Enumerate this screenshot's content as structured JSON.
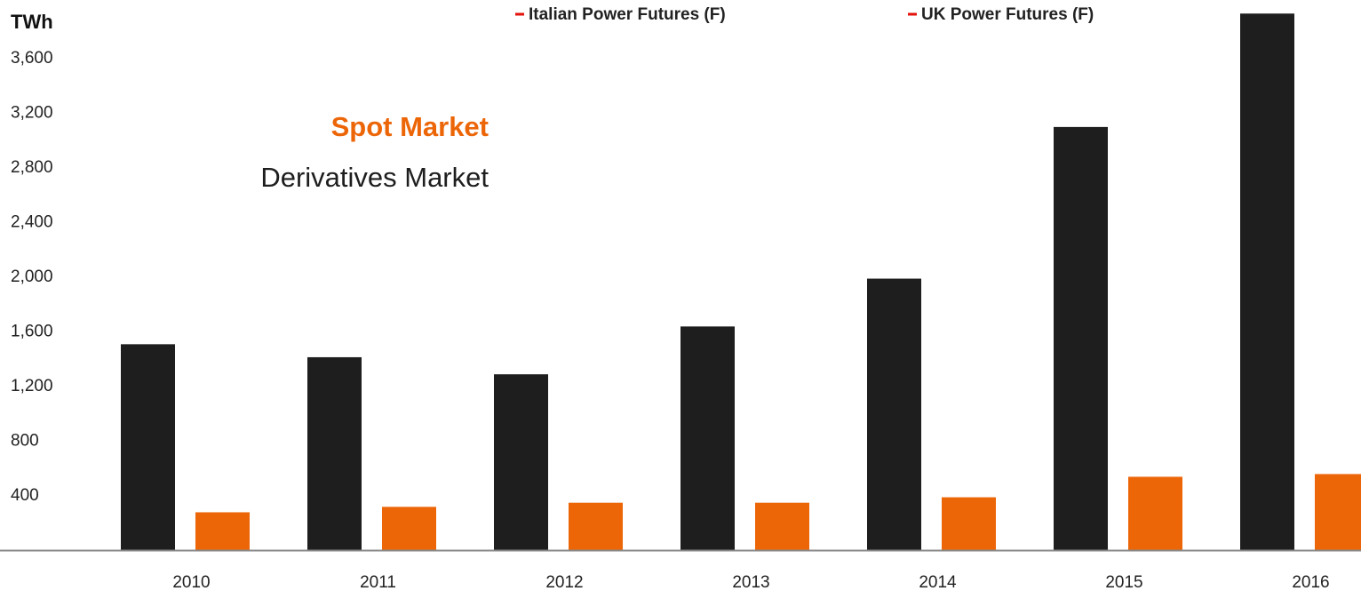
{
  "chart_data": {
    "type": "bar",
    "y_label": "TWh",
    "annotations": [
      {
        "text": "Italian Power Futures (F)",
        "color": "#e3120b"
      },
      {
        "text": "UK Power Futures (F)",
        "color": "#e3120b"
      }
    ],
    "categories": [
      "2010",
      "2011",
      "2012",
      "2013",
      "2014",
      "2015",
      "2016"
    ],
    "series": [
      {
        "name": "Derivatives Market",
        "color": "#1e1e1e",
        "values": [
          1510,
          1415,
          1290,
          1640,
          1990,
          3100,
          3930
        ]
      },
      {
        "name": "Spot Market",
        "color": "#ec6608",
        "values": [
          280,
          320,
          350,
          350,
          390,
          540,
          560
        ]
      }
    ],
    "ylim": [
      0,
      4000
    ],
    "yticks": [
      {
        "value": 400,
        "label": "400"
      },
      {
        "value": 800,
        "label": "800"
      },
      {
        "value": 1200,
        "label": "1,200"
      },
      {
        "value": 1600,
        "label": "1,600"
      },
      {
        "value": 2000,
        "label": "2,000"
      },
      {
        "value": 2400,
        "label": "2,400"
      },
      {
        "value": 2800,
        "label": "2,800"
      },
      {
        "value": 3200,
        "label": "3,200"
      },
      {
        "value": 3600,
        "label": "3,600"
      }
    ],
    "grid": false
  }
}
